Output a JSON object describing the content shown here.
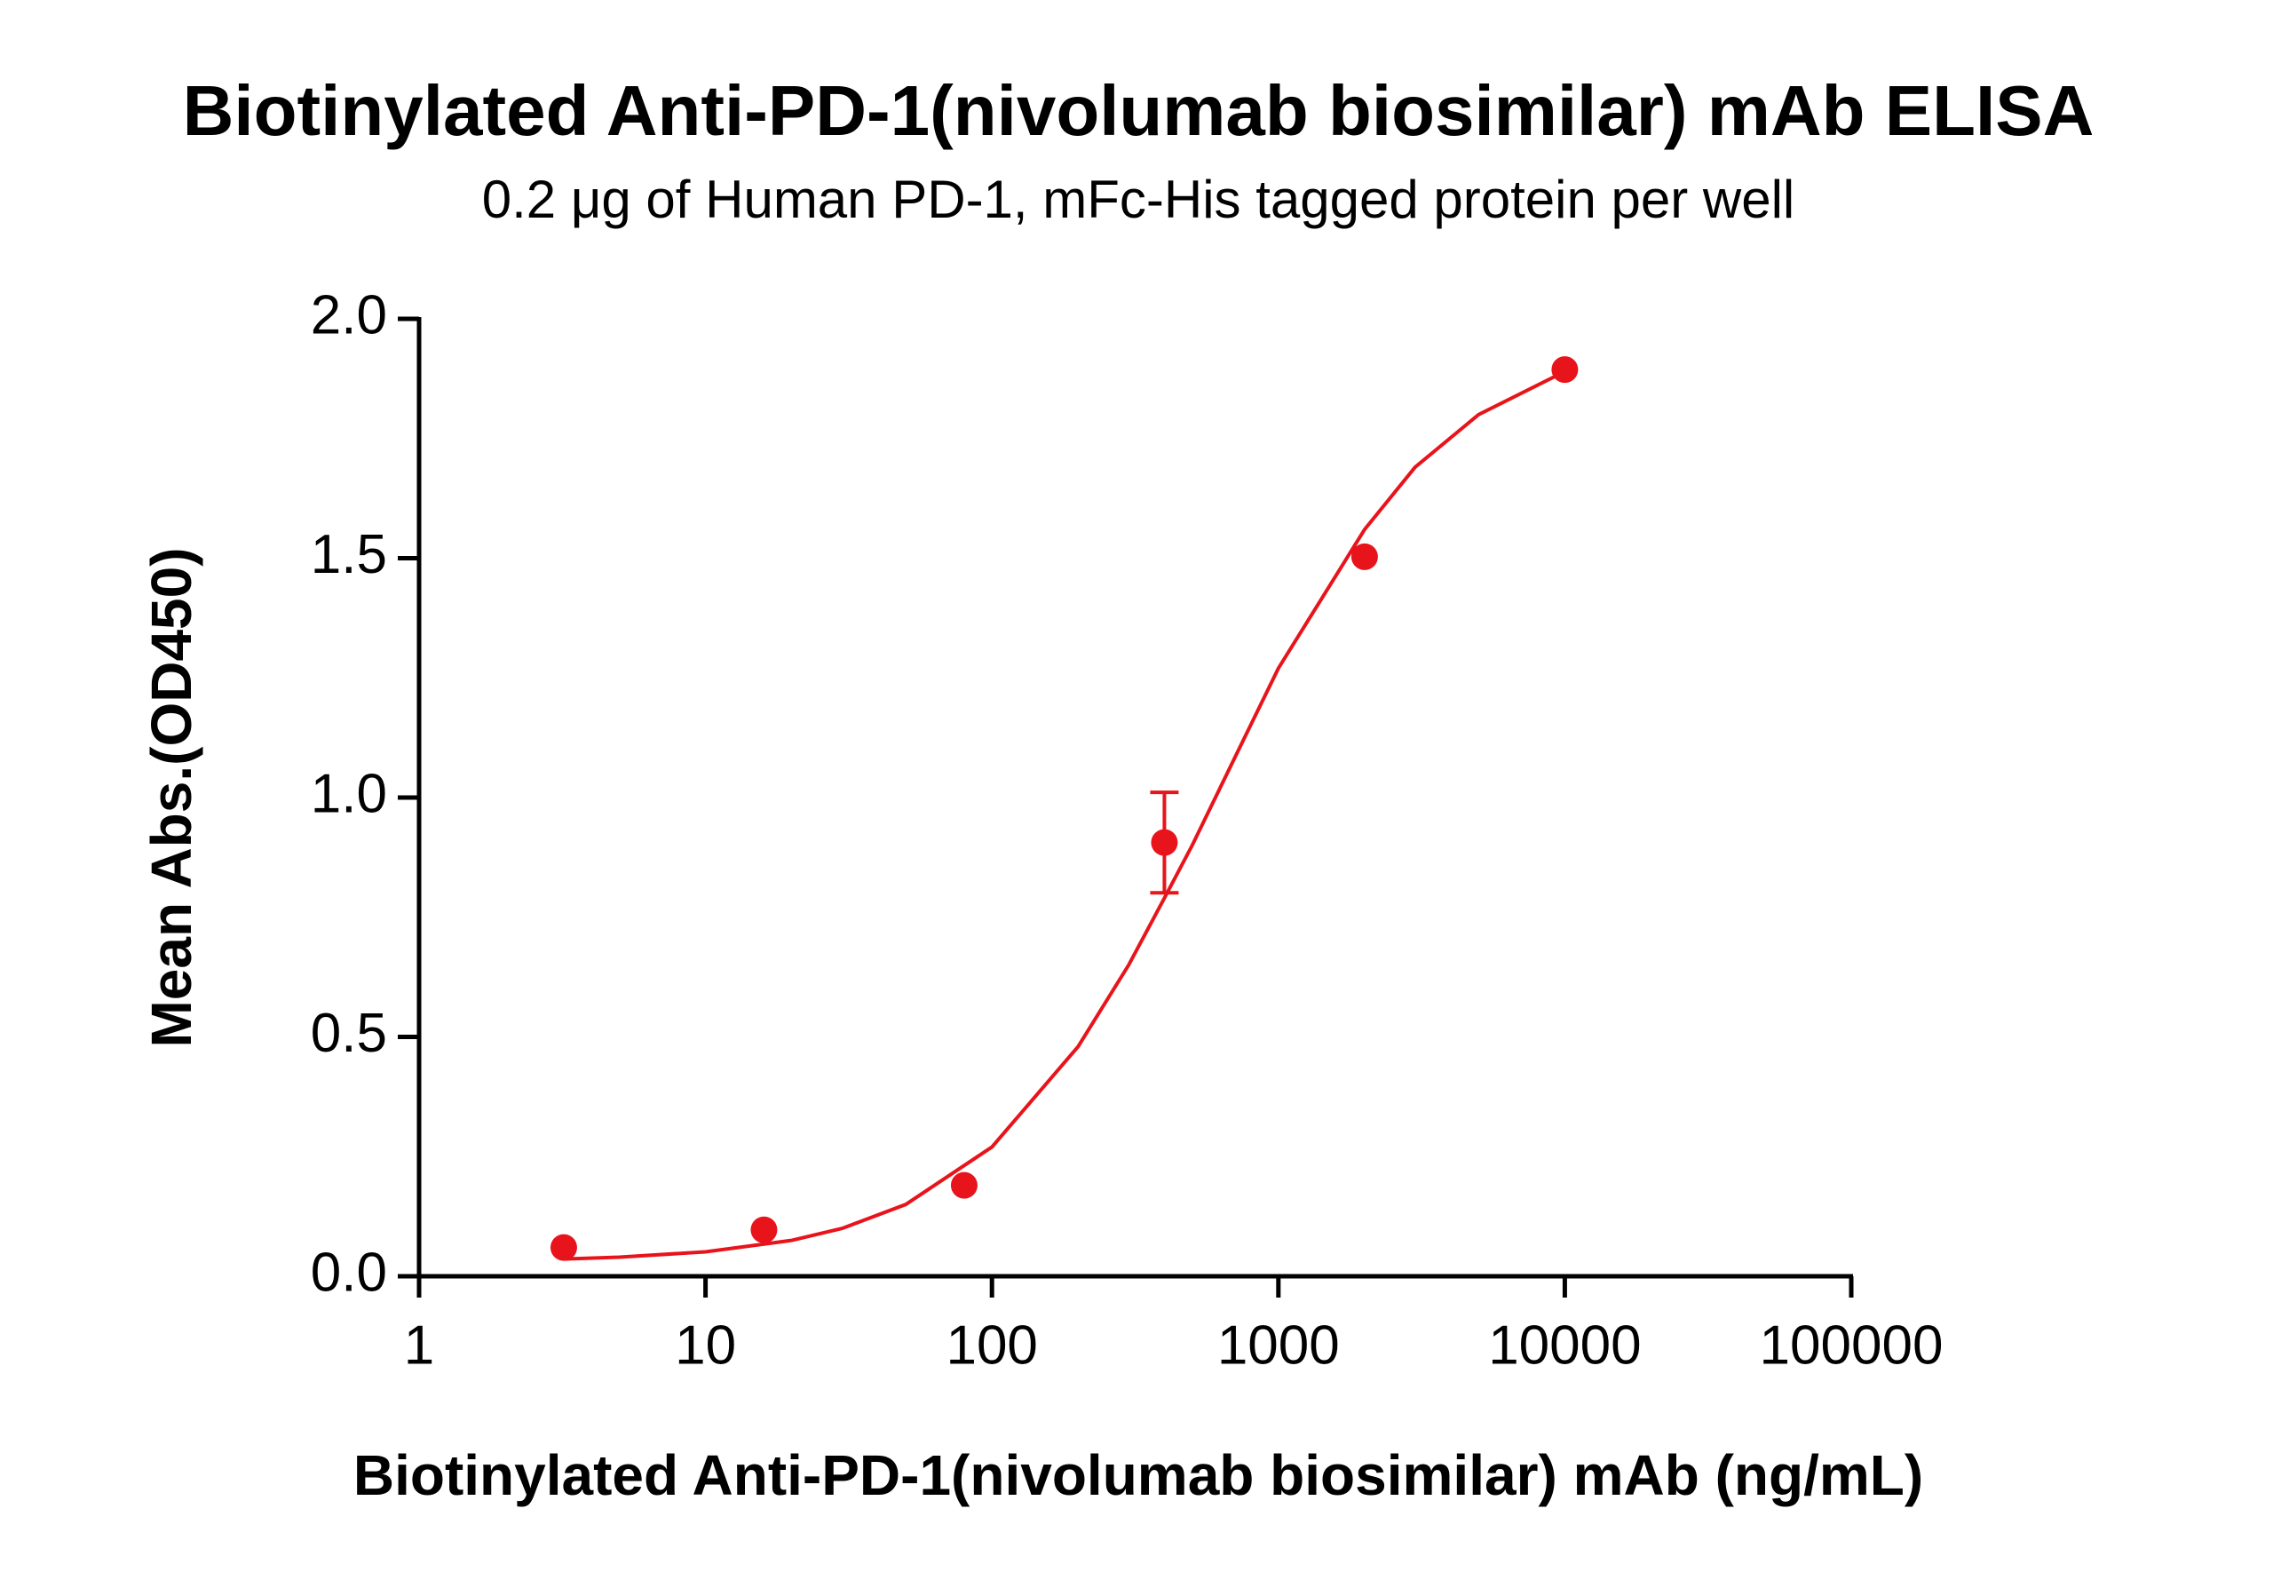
{
  "chart_data": {
    "type": "scatter",
    "title": "Biotinylated Anti-PD-1(nivolumab biosimilar) mAb ELISA",
    "subtitle": "0.2 μg of Human PD-1, mFc-His tagged protein per well",
    "xlabel": "Biotinylated Anti-PD-1(nivolumab biosimilar) mAb (ng/mL)",
    "ylabel": "Mean Abs.(OD450)",
    "xscale": "log",
    "xlim": [
      1,
      100000
    ],
    "xticks": [
      1,
      10,
      100,
      1000,
      10000,
      100000
    ],
    "ylim": [
      0,
      2
    ],
    "yticks": [
      {
        "value": 0,
        "label": "0.0"
      },
      0.5,
      {
        "value": 1,
        "label": "1.0"
      },
      1.5,
      {
        "value": 2,
        "label": "2.0"
      }
    ],
    "color": "#e8141b",
    "series": [
      {
        "type": "scatter",
        "x": [
          3.2,
          16,
          80,
          400,
          2000,
          10000
        ],
        "values": [
          0.06,
          0.097,
          0.19,
          0.906,
          1.503,
          1.894
        ],
        "errors": [
          null,
          null,
          null,
          0.105,
          null,
          null
        ]
      },
      {
        "type": "line",
        "x": [
          3.2,
          5,
          10,
          20,
          30,
          50,
          100,
          200,
          300,
          400,
          500,
          700,
          1000,
          2000,
          3000,
          5000,
          10000
        ],
        "values": [
          0.036,
          0.04,
          0.051,
          0.075,
          0.1,
          0.15,
          0.27,
          0.48,
          0.65,
          0.79,
          0.9,
          1.08,
          1.27,
          1.56,
          1.69,
          1.8,
          1.89
        ]
      }
    ]
  }
}
